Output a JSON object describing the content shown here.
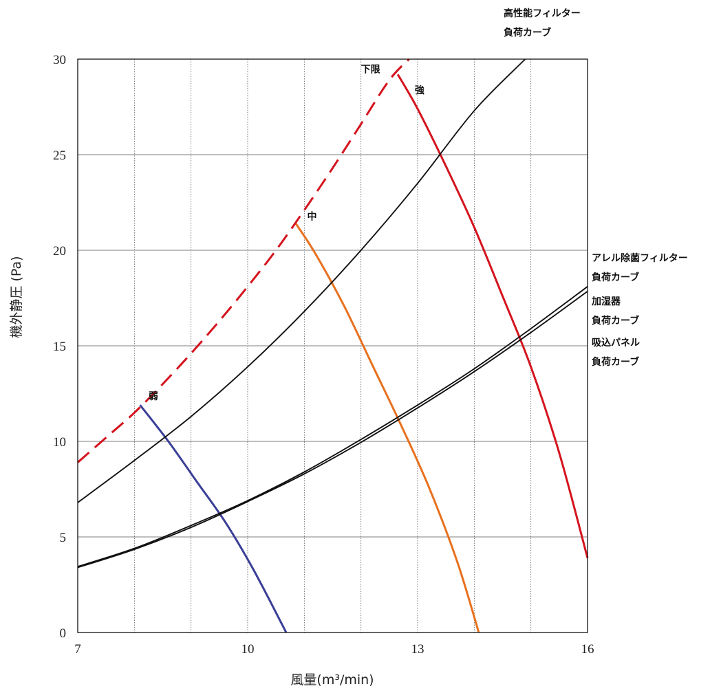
{
  "chart_data": {
    "type": "line",
    "title": "",
    "xlabel": "風量(m³/min)",
    "ylabel": "機外静圧 (Pa)",
    "xlim": [
      7,
      16
    ],
    "ylim": [
      0,
      30
    ],
    "x_ticks": [
      7,
      10,
      13,
      16
    ],
    "y_ticks": [
      0,
      5,
      10,
      15,
      20,
      25,
      30
    ],
    "grid": {
      "vertical_minor": "dotted",
      "horizontal_major": "solid"
    },
    "series": [
      {
        "name": "弱",
        "color": "#3a3f97",
        "style": "solid",
        "x": [
          8.1,
          8.6,
          9.1,
          9.6,
          10.1,
          10.68
        ],
        "y": [
          11.9,
          10.0,
          7.9,
          5.8,
          3.3,
          0
        ]
      },
      {
        "name": "中",
        "color": "#e8711e",
        "style": "solid",
        "x": [
          10.85,
          11.2,
          11.7,
          12.2,
          12.7,
          13.2,
          13.7,
          14.08
        ],
        "y": [
          21.4,
          19.8,
          17.1,
          14.0,
          10.9,
          7.6,
          3.7,
          0
        ]
      },
      {
        "name": "強",
        "color": "#d4141e",
        "style": "solid",
        "x": [
          12.65,
          13.0,
          13.5,
          14.0,
          14.5,
          15.0,
          15.5,
          16.0
        ],
        "y": [
          29.2,
          27.4,
          24.4,
          21.2,
          17.6,
          13.9,
          9.4,
          3.9
        ]
      },
      {
        "name": "下限",
        "color": "#d4141e",
        "style": "dashed",
        "x": [
          7.0,
          7.5,
          8.0,
          8.5,
          9.0,
          9.5,
          10.0,
          10.5,
          11.0,
          11.5,
          12.0,
          12.5,
          12.85
        ],
        "y": [
          8.9,
          10.2,
          11.5,
          13.0,
          14.6,
          16.3,
          18.1,
          20.0,
          22.1,
          24.3,
          26.6,
          28.9,
          30.0
        ]
      },
      {
        "name": "高性能フィルター\n負荷カーブ",
        "color": "#111111",
        "style": "solid",
        "x": [
          7,
          8,
          9,
          10,
          11,
          12,
          13,
          14,
          14.9
        ],
        "y": [
          6.8,
          9.0,
          11.3,
          13.9,
          16.8,
          20.0,
          23.5,
          27.3,
          30.0
        ]
      },
      {
        "name": "アレル除菌フィルター\n負荷カーブ",
        "color": "#111111",
        "style": "solid",
        "x": [
          7,
          8,
          9,
          10,
          11,
          12,
          13,
          14,
          15,
          16
        ],
        "y": [
          3.45,
          4.4,
          5.6,
          6.9,
          8.4,
          10.1,
          11.9,
          13.8,
          15.9,
          18.1
        ]
      },
      {
        "name": "加湿器\n負荷カーブ",
        "color": "#111111",
        "style": "solid",
        "x": [
          7,
          8,
          9,
          10,
          11,
          12,
          13,
          14,
          15,
          16
        ],
        "y": [
          3.4,
          4.35,
          5.5,
          6.85,
          8.3,
          9.95,
          11.75,
          13.65,
          15.7,
          17.85
        ]
      }
    ],
    "annotations": [
      {
        "text": "弱",
        "x": 8.25,
        "y": 12.2
      },
      {
        "text": "中",
        "x": 11.05,
        "y": 21.6
      },
      {
        "text": "下限",
        "x": 12.0,
        "y": 29.3
      },
      {
        "text": "強",
        "x": 12.95,
        "y": 28.2
      }
    ],
    "right_labels": [
      {
        "line1": "高性能フィルター",
        "line2": "負荷カーブ"
      },
      {
        "line1": "アレル除菌フィルター",
        "line2": "負荷カーブ"
      },
      {
        "line1": "加湿器",
        "line2": "負荷カーブ"
      },
      {
        "line1": "吸込パネル",
        "line2": "負荷カーブ"
      }
    ]
  }
}
